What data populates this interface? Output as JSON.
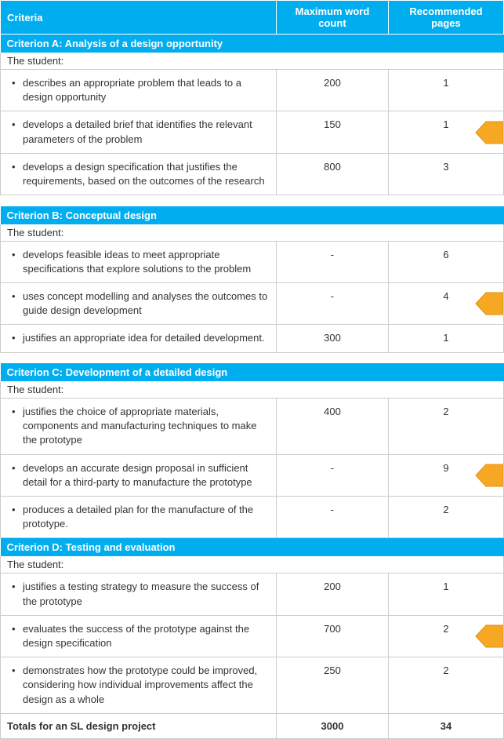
{
  "colors": {
    "header_bg": "#00aeef",
    "section_bg": "#00aeef",
    "arrow_fill": "#f7a823",
    "arrow_stroke": "#e08f0f",
    "border": "#cccccc",
    "text": "#333333"
  },
  "headers": {
    "criteria": "Criteria",
    "max_words": "Maximum word count",
    "rec_pages": "Recommended pages"
  },
  "student_label": "The student:",
  "sections": [
    {
      "title": "Criterion A: Analysis of a design opportunity",
      "rows": [
        {
          "desc": "describes an appropriate problem that leads to a design opportunity",
          "words": "200",
          "pages": "1",
          "arrow": false
        },
        {
          "desc": "develops a detailed brief that identifies the relevant parameters of the problem",
          "words": "150",
          "pages": "1",
          "arrow": true
        },
        {
          "desc": "develops a design specification that justifies the requirements, based on the outcomes of the research",
          "words": "800",
          "pages": "3",
          "arrow": false
        }
      ]
    },
    {
      "title": "Criterion B: Conceptual design",
      "rows": [
        {
          "desc": "develops feasible ideas to meet appropriate specifications that explore solutions to the problem",
          "words": "-",
          "pages": "6",
          "arrow": false
        },
        {
          "desc": "uses concept modelling and analyses the outcomes to guide design development",
          "words": "-",
          "pages": "4",
          "arrow": true
        },
        {
          "desc": "justifies an appropriate idea for detailed development.",
          "words": "300",
          "pages": "1",
          "arrow": false
        }
      ]
    },
    {
      "title": "Criterion C: Development of a detailed design",
      "rows": [
        {
          "desc": "justifies the choice of appropriate materials, components and manufacturing techniques to make the prototype",
          "words": "400",
          "pages": "2",
          "arrow": false
        },
        {
          "desc": "develops an accurate design proposal in sufficient detail for a third-party to manufacture the prototype",
          "words": "-",
          "pages": "9",
          "arrow": true
        },
        {
          "desc": "produces a detailed plan for the manufacture of the prototype.",
          "words": "-",
          "pages": "2",
          "arrow": false
        }
      ]
    },
    {
      "title": "Criterion D: Testing and evaluation",
      "rows": [
        {
          "desc": "justifies a testing strategy to measure the success of the prototype",
          "words": "200",
          "pages": "1",
          "arrow": false
        },
        {
          "desc": "evaluates the success of the prototype against the design specification",
          "words": "700",
          "pages": "2",
          "arrow": true
        },
        {
          "desc": "demonstrates how the prototype could be improved, considering how individual improvements affect the design as a whole",
          "words": "250",
          "pages": "2",
          "arrow": false
        }
      ]
    }
  ],
  "totals": {
    "label": "Totals for an SL design project",
    "words": "3000",
    "pages": "34"
  }
}
